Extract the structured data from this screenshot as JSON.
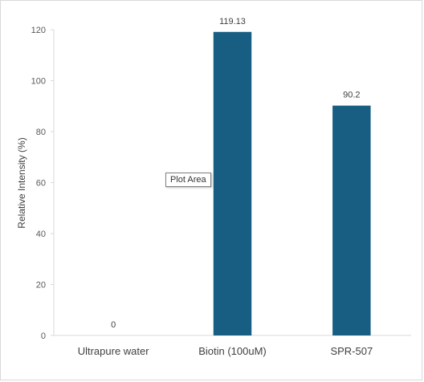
{
  "chart_data": {
    "type": "bar",
    "categories": [
      "Ultrapure water",
      "Biotin (100uM)",
      "SPR-507"
    ],
    "values": [
      0,
      119.13,
      90.2
    ],
    "data_labels": [
      "0",
      "119.13",
      "90.2"
    ],
    "title": "",
    "xlabel": "",
    "ylabel": "Relative Intensity (%)",
    "ylim": [
      0,
      120
    ],
    "yticks": [
      0,
      20,
      40,
      60,
      80,
      100,
      120
    ],
    "grid": false,
    "legend": "none",
    "bar_color": "#175e82"
  },
  "tooltip": {
    "text": "Plot Area"
  }
}
